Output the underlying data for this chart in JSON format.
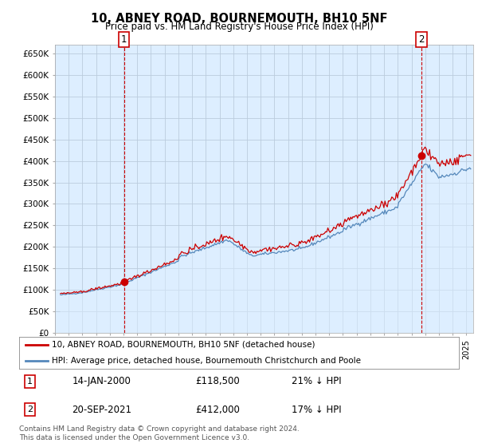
{
  "title": "10, ABNEY ROAD, BOURNEMOUTH, BH10 5NF",
  "subtitle": "Price paid vs. HM Land Registry's House Price Index (HPI)",
  "ylim": [
    0,
    670000
  ],
  "yticks": [
    0,
    50000,
    100000,
    150000,
    200000,
    250000,
    300000,
    350000,
    400000,
    450000,
    500000,
    550000,
    600000,
    650000
  ],
  "xlim_start": 1995.3,
  "xlim_end": 2025.5,
  "hpi_color": "#5588bb",
  "hpi_fill_color": "#ddeeff",
  "price_color": "#cc0000",
  "background_color": "#ffffff",
  "chart_bg_color": "#ddeeff",
  "grid_color": "#bbccdd",
  "sale1_x": 2000.04,
  "sale1_y": 118500,
  "sale1_label": "1",
  "sale2_x": 2021.72,
  "sale2_y": 412000,
  "sale2_label": "2",
  "legend_line1": "10, ABNEY ROAD, BOURNEMOUTH, BH10 5NF (detached house)",
  "legend_line2": "HPI: Average price, detached house, Bournemouth Christchurch and Poole",
  "annotation1_date": "14-JAN-2000",
  "annotation1_price": "£118,500",
  "annotation1_hpi": "21% ↓ HPI",
  "annotation2_date": "20-SEP-2021",
  "annotation2_price": "£412,000",
  "annotation2_hpi": "17% ↓ HPI",
  "footer": "Contains HM Land Registry data © Crown copyright and database right 2024.\nThis data is licensed under the Open Government Licence v3.0."
}
